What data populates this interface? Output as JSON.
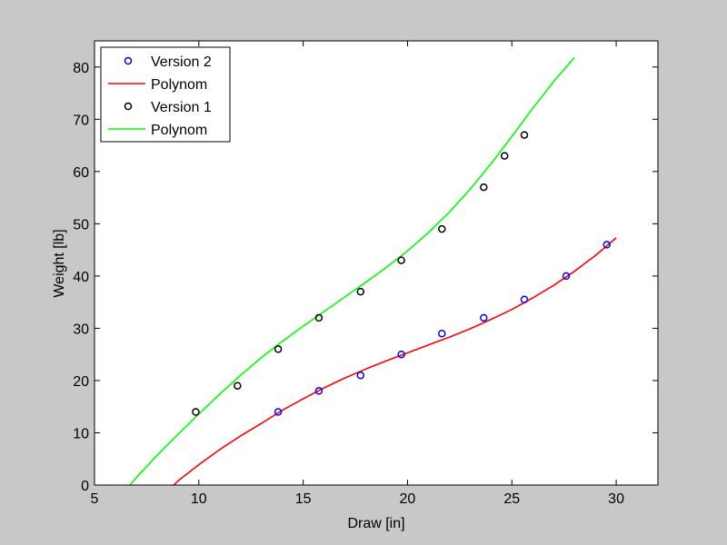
{
  "chart_data": {
    "type": "scatter",
    "title": "",
    "xlabel": "Draw [in]",
    "ylabel": "Weight [lb]",
    "xlim": [
      5,
      32
    ],
    "ylim": [
      0,
      85
    ],
    "x_ticks": [
      5,
      10,
      15,
      20,
      25,
      30
    ],
    "y_ticks": [
      0,
      10,
      20,
      30,
      40,
      50,
      60,
      70,
      80
    ],
    "grid": false,
    "legend": {
      "placement": "top-left",
      "entries": [
        {
          "label": "Version 2",
          "kind": "marker",
          "color": "#0000ff"
        },
        {
          "label": "Polynom",
          "kind": "line",
          "color": "#ff0000"
        },
        {
          "label": "Version 1",
          "kind": "marker",
          "color": "#000000"
        },
        {
          "label": "Polynom",
          "kind": "line",
          "color": "#00ff00"
        }
      ]
    },
    "series": [
      {
        "name": "Version 2",
        "kind": "marker",
        "color": "#0000ff",
        "x": [
          13.8,
          15.75,
          17.75,
          19.7,
          21.65,
          23.65,
          25.6,
          27.6,
          29.55
        ],
        "y": [
          14,
          18,
          21,
          25,
          29,
          32,
          35.5,
          40,
          46
        ]
      },
      {
        "name": "Polynom",
        "kind": "line",
        "color": "#ff0000",
        "x": [
          8.8,
          9,
          10,
          11,
          12,
          13,
          14,
          15,
          16,
          17,
          18,
          19,
          20,
          21,
          22,
          23,
          24,
          25,
          26,
          27,
          28,
          29,
          30
        ],
        "y": [
          0,
          0.8,
          3.9,
          6.8,
          9.4,
          11.8,
          14.3,
          16.5,
          18.6,
          20.5,
          22.2,
          23.8,
          25.3,
          26.8,
          28.3,
          29.9,
          31.7,
          33.6,
          35.8,
          38.2,
          40.9,
          43.9,
          47.3
        ]
      },
      {
        "name": "Version 1",
        "kind": "marker",
        "color": "#000000",
        "x": [
          9.85,
          11.85,
          13.8,
          15.75,
          17.75,
          19.7,
          21.65,
          23.65,
          24.65,
          25.6
        ],
        "y": [
          14,
          19,
          26,
          32,
          37,
          43,
          49,
          57,
          63,
          67
        ]
      },
      {
        "name": "Polynom",
        "kind": "line",
        "color": "#00ff00",
        "x": [
          6.7,
          7,
          8,
          9,
          10,
          11,
          12,
          13,
          14,
          15,
          16,
          17,
          18,
          19,
          20,
          21,
          22,
          23,
          24,
          25,
          26,
          27,
          28
        ],
        "y": [
          0,
          1.4,
          5.7,
          9.7,
          13.6,
          17.4,
          21,
          24.4,
          27.5,
          30.4,
          33.2,
          36,
          38.8,
          41.7,
          44.8,
          48.3,
          52.2,
          56.6,
          61.5,
          66.7,
          72.1,
          77.2,
          81.8
        ]
      }
    ]
  }
}
